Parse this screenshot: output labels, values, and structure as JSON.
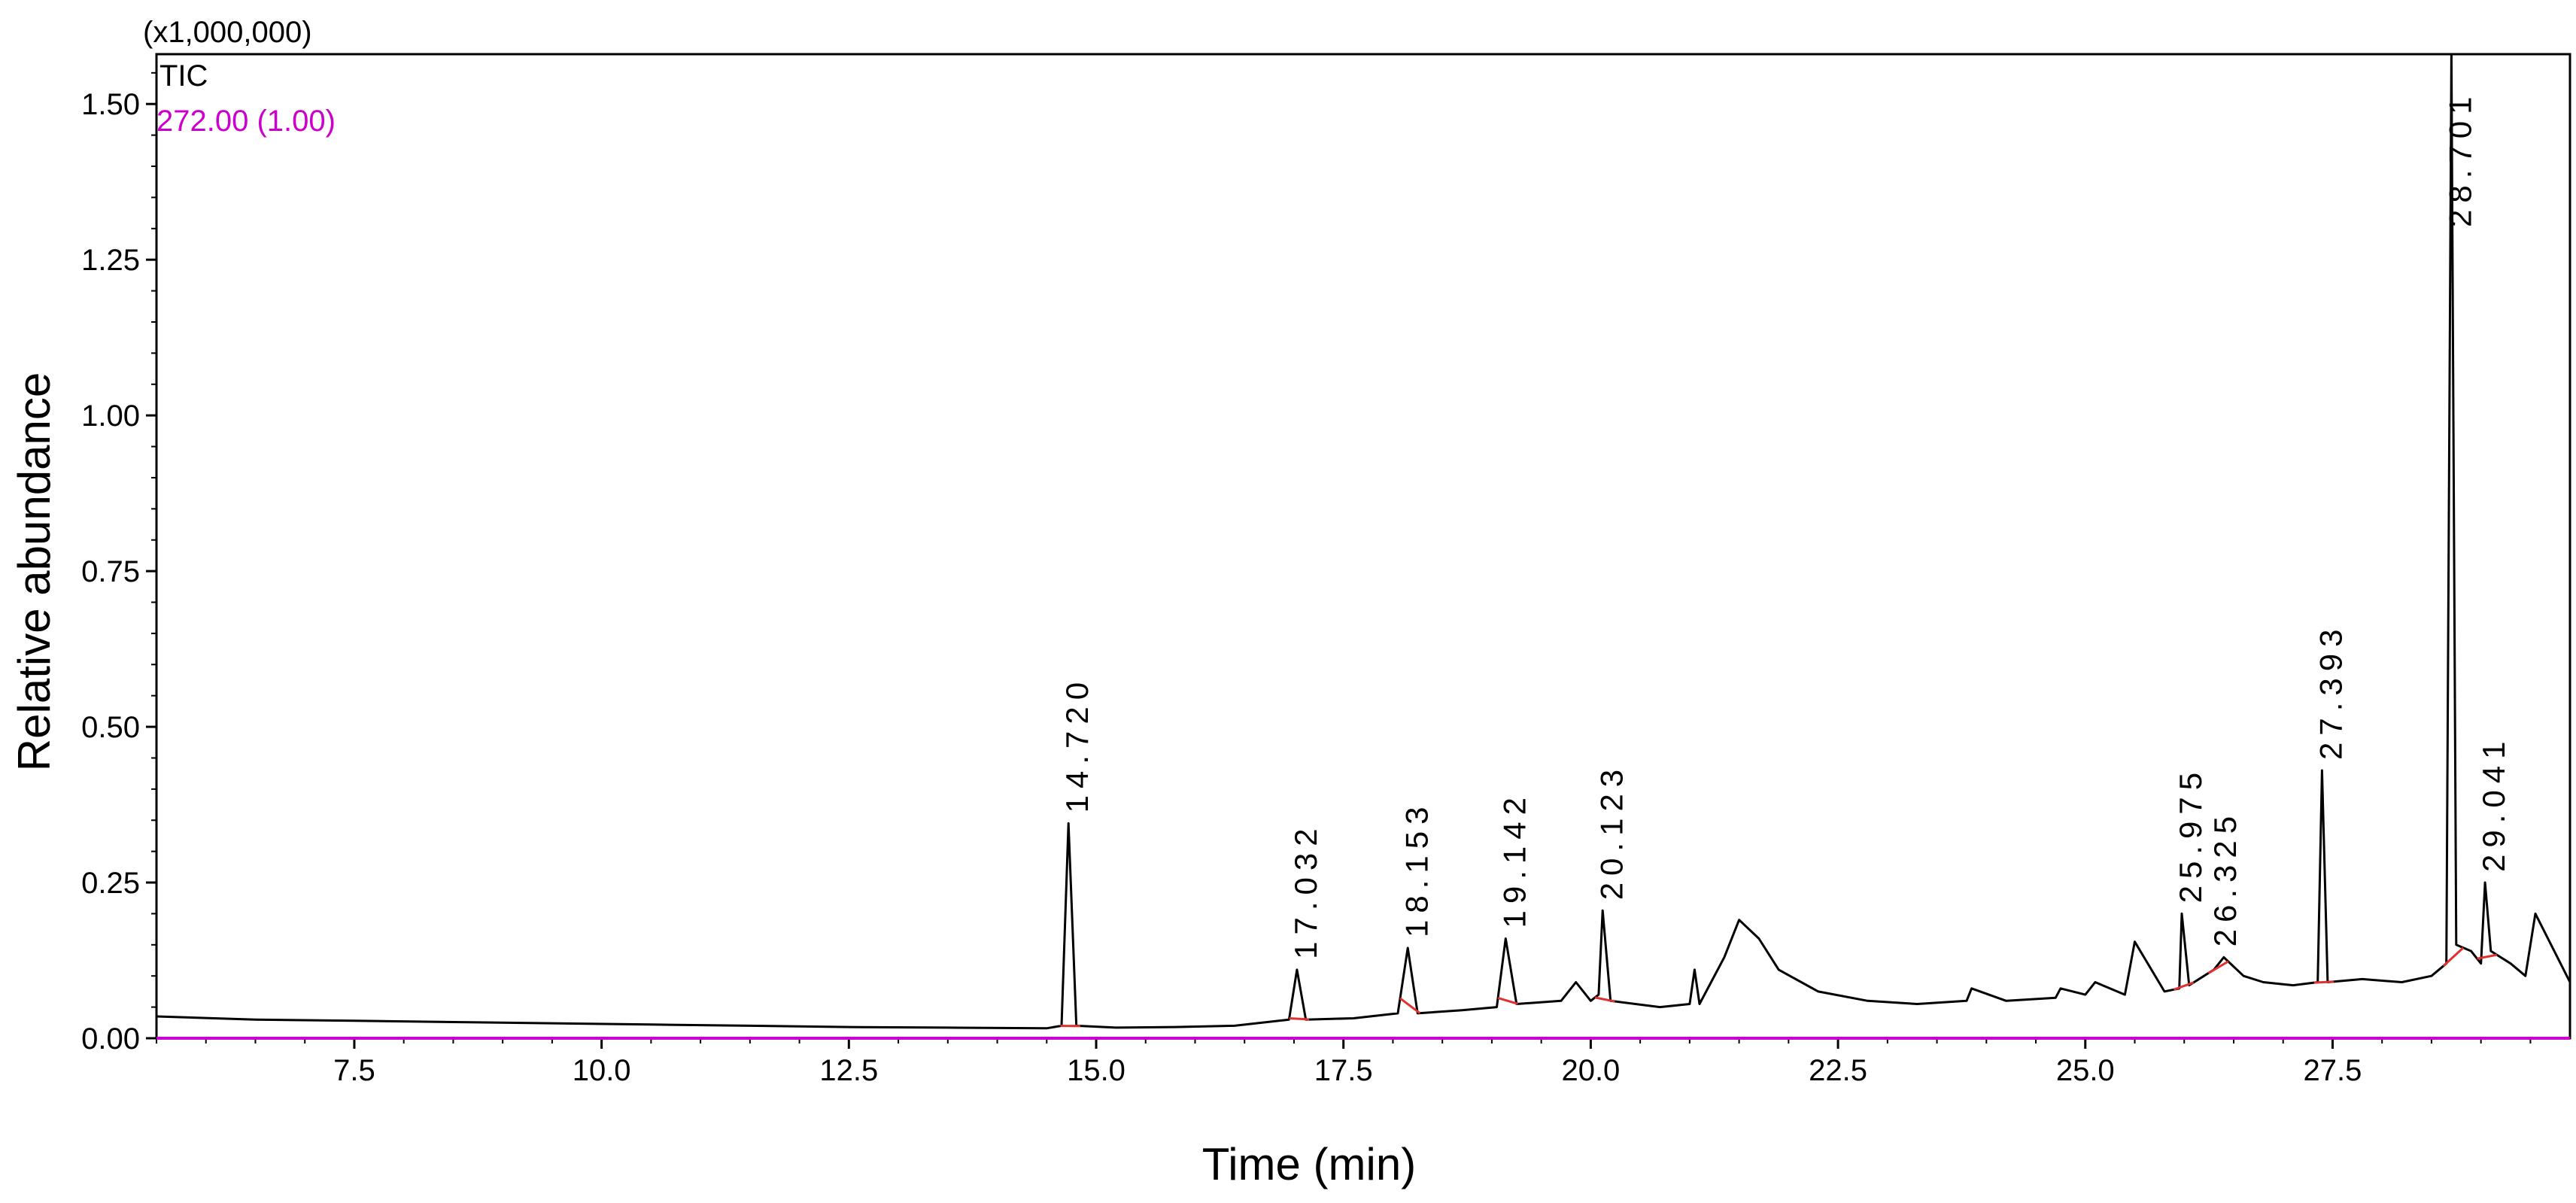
{
  "chart_data": {
    "type": "line",
    "multiplier_label": "(x1,000,000)",
    "xlabel": "Time (min)",
    "ylabel": "Relative abundance",
    "xlim": [
      5.5,
      29.9
    ],
    "ylim": [
      0,
      1.58
    ],
    "x_ticks": [
      "7.5",
      "10.0",
      "12.5",
      "15.0",
      "17.5",
      "20.0",
      "22.5",
      "25.0",
      "27.5"
    ],
    "y_ticks": [
      "0.00",
      "0.25",
      "0.50",
      "0.75",
      "1.00",
      "1.25",
      "1.50"
    ],
    "legend": [
      "TIC",
      "272.00 (1.00)"
    ],
    "colors": {
      "tic": "#000000",
      "ion_trace": "#cc00cc",
      "integration": "#e03030"
    },
    "series": [
      {
        "name": "TIC",
        "x": [
          5.5,
          6.5,
          7.5,
          8.5,
          9.5,
          10.5,
          11.5,
          12.5,
          13.5,
          14.5,
          14.65,
          14.72,
          14.8,
          15.2,
          15.8,
          16.4,
          16.95,
          17.03,
          17.12,
          17.6,
          18.05,
          18.15,
          18.25,
          18.7,
          19.05,
          19.14,
          19.25,
          19.7,
          19.85,
          20.0,
          20.08,
          20.12,
          20.2,
          20.7,
          21.0,
          21.05,
          21.1,
          21.35,
          21.5,
          21.7,
          21.9,
          22.3,
          22.8,
          23.3,
          23.8,
          23.85,
          24.2,
          24.7,
          24.75,
          25.0,
          25.1,
          25.4,
          25.5,
          25.8,
          25.95,
          25.975,
          26.05,
          26.3,
          26.4,
          26.6,
          26.8,
          27.1,
          27.35,
          27.393,
          27.45,
          27.8,
          28.2,
          28.5,
          28.65,
          28.701,
          28.75,
          28.9,
          29.0,
          29.041,
          29.1,
          29.3,
          29.45,
          29.55,
          29.9
        ],
        "y": [
          0.035,
          0.03,
          0.028,
          0.026,
          0.024,
          0.022,
          0.02,
          0.018,
          0.017,
          0.016,
          0.02,
          0.345,
          0.02,
          0.017,
          0.018,
          0.02,
          0.03,
          0.11,
          0.03,
          0.032,
          0.04,
          0.145,
          0.04,
          0.045,
          0.05,
          0.16,
          0.055,
          0.06,
          0.09,
          0.06,
          0.07,
          0.205,
          0.06,
          0.05,
          0.055,
          0.11,
          0.055,
          0.13,
          0.19,
          0.16,
          0.11,
          0.075,
          0.06,
          0.055,
          0.06,
          0.08,
          0.06,
          0.065,
          0.08,
          0.07,
          0.09,
          0.07,
          0.155,
          0.075,
          0.08,
          0.2,
          0.085,
          0.11,
          0.13,
          0.1,
          0.09,
          0.085,
          0.09,
          0.43,
          0.09,
          0.095,
          0.09,
          0.1,
          0.12,
          1.58,
          0.15,
          0.14,
          0.12,
          0.25,
          0.14,
          0.12,
          0.1,
          0.2,
          0.09
        ]
      },
      {
        "name": "272.00 (1.00)",
        "x": [
          5.5,
          29.9
        ],
        "y": [
          0.0,
          0.0
        ]
      }
    ],
    "peak_labels": [
      {
        "label": "14.720",
        "x": 14.72,
        "y": 0.345
      },
      {
        "label": "17.032",
        "x": 17.032,
        "y": 0.11
      },
      {
        "label": "18.153",
        "x": 18.153,
        "y": 0.145
      },
      {
        "label": "19.142",
        "x": 19.142,
        "y": 0.16
      },
      {
        "label": "20.123",
        "x": 20.123,
        "y": 0.205
      },
      {
        "label": "25.975",
        "x": 25.975,
        "y": 0.2
      },
      {
        "label": "26.325",
        "x": 26.325,
        "y": 0.13
      },
      {
        "label": "27.393",
        "x": 27.393,
        "y": 0.43
      },
      {
        "label": "28.701",
        "x": 28.701,
        "y": 1.58
      },
      {
        "label": "29.041",
        "x": 29.041,
        "y": 0.25
      }
    ],
    "grid": false
  }
}
